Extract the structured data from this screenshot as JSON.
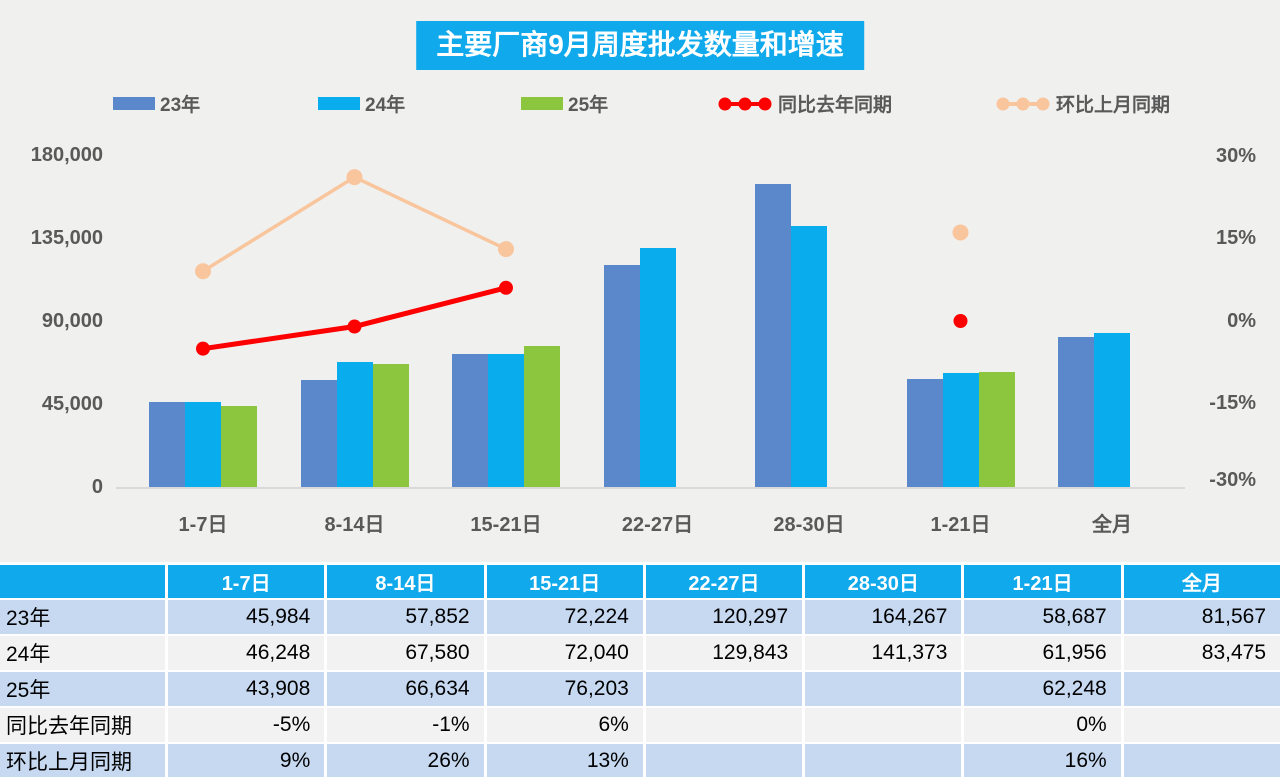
{
  "title": "主要厂商9月周度批发数量和增速",
  "colors": {
    "title_bg": "#10a9ec",
    "bar_23": "#5b88ca",
    "bar_24": "#09acec",
    "bar_25": "#8cc63f",
    "line_yoy": "#fe0000",
    "line_mom": "#f9c59c",
    "axis_text": "#595959",
    "table_header_bg": "#10a9ec",
    "table_row_blue": "#c6d9f1",
    "table_row_gray": "#f2f2f2"
  },
  "legend": [
    {
      "label": "23年",
      "marker": "bar",
      "color": "#5b88ca"
    },
    {
      "label": "24年",
      "marker": "bar",
      "color": "#09acec"
    },
    {
      "label": "25年",
      "marker": "bar",
      "color": "#8cc63f"
    },
    {
      "label": "同比去年同期",
      "marker": "line",
      "color": "#fe0000"
    },
    {
      "label": "环比上月同期",
      "marker": "line",
      "color": "#f9c59c"
    }
  ],
  "chart_data": {
    "type": "combo-bar-line",
    "categories": [
      "1-7日",
      "8-14日",
      "15-21日",
      "22-27日",
      "28-30日",
      "1-21日",
      "全月"
    ],
    "left_axis": {
      "ticks": [
        "180,000",
        "135,000",
        "90,000",
        "45,000",
        "0"
      ],
      "min": 0,
      "max": 180000
    },
    "right_axis": {
      "ticks": [
        "30%",
        "15%",
        "0%",
        "-15%",
        "-30%"
      ],
      "min": -30,
      "max": 30
    },
    "grid": false,
    "legend_position": "top",
    "series": [
      {
        "name": "23年",
        "type": "bar",
        "color": "#5b88ca",
        "axis": "left",
        "values": [
          45984,
          57852,
          72224,
          120297,
          164267,
          58687,
          81567
        ]
      },
      {
        "name": "24年",
        "type": "bar",
        "color": "#09acec",
        "axis": "left",
        "values": [
          46248,
          67580,
          72040,
          129843,
          141373,
          61956,
          83475
        ]
      },
      {
        "name": "25年",
        "type": "bar",
        "color": "#8cc63f",
        "axis": "left",
        "values": [
          43908,
          66634,
          76203,
          null,
          null,
          62248,
          null
        ]
      },
      {
        "name": "同比去年同期",
        "type": "line",
        "color": "#fe0000",
        "axis": "right",
        "values": [
          -5,
          -1,
          6,
          null,
          null,
          0,
          null
        ]
      },
      {
        "name": "环比上月同期",
        "type": "line",
        "color": "#f9c59c",
        "axis": "right",
        "values": [
          9,
          26,
          13,
          null,
          null,
          16,
          null
        ]
      }
    ]
  },
  "table": {
    "header": [
      "",
      "1-7日",
      "8-14日",
      "15-21日",
      "22-27日",
      "28-30日",
      "1-21日",
      "全月"
    ],
    "rows": [
      {
        "label": "23年",
        "values": [
          "45,984",
          "57,852",
          "72,224",
          "120,297",
          "164,267",
          "58,687",
          "81,567"
        ]
      },
      {
        "label": "24年",
        "values": [
          "46,248",
          "67,580",
          "72,040",
          "129,843",
          "141,373",
          "61,956",
          "83,475"
        ]
      },
      {
        "label": "25年",
        "values": [
          "43,908",
          "66,634",
          "76,203",
          "",
          "",
          "62,248",
          ""
        ]
      },
      {
        "label": "同比去年同期",
        "values": [
          "-5%",
          "-1%",
          "6%",
          "",
          "",
          "0%",
          ""
        ]
      },
      {
        "label": "环比上月同期",
        "values": [
          "9%",
          "26%",
          "13%",
          "",
          "",
          "16%",
          ""
        ]
      }
    ]
  }
}
